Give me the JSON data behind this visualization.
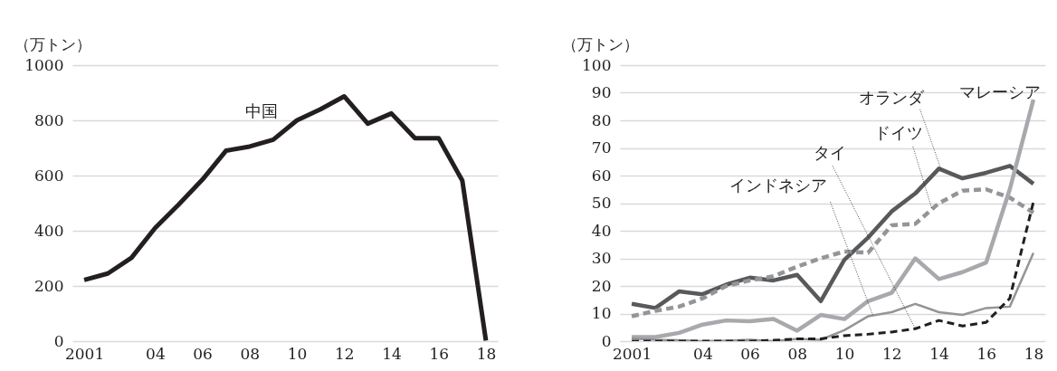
{
  "chart_data": [
    {
      "type": "line",
      "ylabel": "（万トン）",
      "x": [
        2001,
        2002,
        2003,
        2004,
        2005,
        2006,
        2007,
        2008,
        2009,
        2010,
        2011,
        2012,
        2013,
        2014,
        2015,
        2016,
        2017,
        2018
      ],
      "series": [
        {
          "name": "中国",
          "color": "#231f20",
          "values": [
            222,
            245,
            302,
            410,
            495,
            585,
            690,
            705,
            730,
            800,
            840,
            887,
            788,
            825,
            735,
            735,
            582,
            2
          ]
        }
      ],
      "xlim": [
        2000.5,
        2018.5
      ],
      "xticks": [
        {
          "value": 2001,
          "label": "2001"
        },
        {
          "value": 2004,
          "label": "04"
        },
        {
          "value": 2006,
          "label": "06"
        },
        {
          "value": 2008,
          "label": "08"
        },
        {
          "value": 2010,
          "label": "10"
        },
        {
          "value": 2012,
          "label": "12"
        },
        {
          "value": 2014,
          "label": "14"
        },
        {
          "value": 2016,
          "label": "16"
        },
        {
          "value": 2018,
          "label": "18"
        }
      ],
      "ylim": [
        0,
        1000
      ],
      "yticks": [
        0,
        200,
        400,
        600,
        800,
        1000
      ],
      "grid": "y",
      "line_style": "solid"
    },
    {
      "type": "line",
      "ylabel": "（万トン）",
      "x": [
        2001,
        2002,
        2003,
        2004,
        2005,
        2006,
        2007,
        2008,
        2009,
        2010,
        2011,
        2012,
        2013,
        2014,
        2015,
        2016,
        2017,
        2018
      ],
      "series": [
        {
          "name": "オランダ",
          "color": "#58595b",
          "values": [
            13.5,
            12,
            18,
            17,
            20.5,
            23,
            22,
            24,
            14.5,
            29.5,
            37.5,
            47,
            53.5,
            62.5,
            59,
            61,
            63.5,
            57
          ]
        },
        {
          "name": "ドイツ",
          "color": "#939598",
          "line_style": "dashed",
          "values": [
            9,
            11,
            12.5,
            15.5,
            20,
            22,
            23.5,
            27,
            30,
            32.5,
            32,
            42,
            42.5,
            50,
            54.5,
            55,
            52,
            46.5
          ]
        },
        {
          "name": "マレーシア",
          "color": "#a7a9ac",
          "values": [
            1.5,
            1.5,
            3,
            6,
            7.5,
            7.2,
            8,
            3.8,
            9.5,
            8,
            14.5,
            17.5,
            30,
            22.5,
            25,
            28.5,
            55,
            87.5
          ]
        },
        {
          "name": "インドネシア",
          "color": "#939598",
          "values": [
            1,
            0.5,
            0.3,
            0,
            0.2,
            0.5,
            0,
            0.8,
            0.5,
            4,
            9,
            10.5,
            13.5,
            10.5,
            9.5,
            12,
            12.5,
            32
          ]
        },
        {
          "name": "タイ",
          "color": "#231f20",
          "line_style": "dashed",
          "values": [
            0,
            0,
            0,
            0,
            0,
            0,
            0.3,
            0.8,
            0.8,
            2,
            2.5,
            3.3,
            4.5,
            7.5,
            5.5,
            6.8,
            15.5,
            50.5
          ]
        }
      ],
      "xlim": [
        2000.5,
        2018.5
      ],
      "xticks": [
        {
          "value": 2001,
          "label": "2001"
        },
        {
          "value": 2004,
          "label": "04"
        },
        {
          "value": 2006,
          "label": "06"
        },
        {
          "value": 2008,
          "label": "08"
        },
        {
          "value": 2010,
          "label": "10"
        },
        {
          "value": 2012,
          "label": "12"
        },
        {
          "value": 2014,
          "label": "14"
        },
        {
          "value": 2016,
          "label": "16"
        },
        {
          "value": 2018,
          "label": "18"
        }
      ],
      "ylim": [
        0,
        100
      ],
      "yticks": [
        0,
        10,
        20,
        30,
        40,
        50,
        60,
        70,
        80,
        90,
        100
      ],
      "grid": "y",
      "line_style": "solid"
    }
  ]
}
